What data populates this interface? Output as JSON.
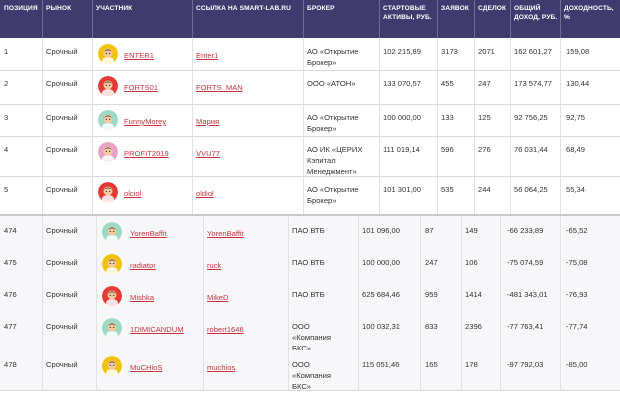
{
  "columns": [
    "ПОЗИЦИЯ",
    "РЫНОК",
    "УЧАСТНИК",
    "ССЫЛКА НА SMART-LAB.RU",
    "БРОКЕР",
    "СТАРТОВЫЕ АКТИВЫ, РУБ.",
    "ЗАЯВОК",
    "СДЕЛОК",
    "ОБЩИЙ ДОХОД, РУБ.",
    "ДОХОДНОСТЬ, %"
  ],
  "top_rows": [
    {
      "position": "1",
      "market": "Срочный",
      "participant": "ENTER1",
      "link": "Enter1",
      "broker": [
        "АО «Открытие",
        "Брокер»"
      ],
      "assets": "102 215,89",
      "orders": "3173",
      "deals": "2071",
      "income": "162 601,27",
      "yield": "159,08",
      "avatar_color": "#f2c200"
    },
    {
      "position": "2",
      "market": "Срочный",
      "participant": "FORTS01",
      "link": "FORTS_MAN",
      "broker": [
        "ООО «АТОН»"
      ],
      "assets": "133 070,57",
      "orders": "455",
      "deals": "247",
      "income": "173 574,77",
      "yield": "130,44",
      "avatar_color": "#e53935"
    },
    {
      "position": "3",
      "market": "Срочный",
      "participant": "FunnyMorey",
      "link": "Мария",
      "broker": [
        "АО «Открытие",
        "Брокер»"
      ],
      "assets": "100 000,00",
      "orders": "133",
      "deals": "125",
      "income": "92 756,25",
      "yield": "92,75",
      "avatar_color": "#9ad9c4"
    },
    {
      "position": "4",
      "market": "Срочный",
      "participant": "PROFIT2019",
      "link": "VVU77",
      "broker": [
        "АО ИК «ЦЕРИХ",
        "Кэпитал",
        "Менеджмент»"
      ],
      "assets": "111 019,14",
      "orders": "596",
      "deals": "276",
      "income": "76 031,44",
      "yield": "68,49",
      "avatar_color": "#e8a3c4"
    },
    {
      "position": "5",
      "market": "Срочный",
      "participant": "olciol",
      "link": "oldiol",
      "broker": [
        "АО «Открытие",
        "Брокер»"
      ],
      "assets": "101 301,00",
      "orders": "535",
      "deals": "244",
      "income": "56 064,25",
      "yield": "55,34",
      "avatar_color": "#e53935"
    }
  ],
  "bottom_rows": [
    {
      "position": "474",
      "market": "Срочный",
      "participant": "YorenBaffit",
      "link": "YorenBaffit",
      "broker": [
        "ПАО ВТБ"
      ],
      "assets": "101 096,00",
      "orders": "87",
      "deals": "149",
      "income": "-66 233,89",
      "yield": "-65,52",
      "avatar_color": "#9ad9c4"
    },
    {
      "position": "475",
      "market": "Срочный",
      "participant": "radiator",
      "link": "ruck",
      "broker": [
        "ПАО ВТБ"
      ],
      "assets": "100 000,00",
      "orders": "247",
      "deals": "106",
      "income": "-75 074,59",
      "yield": "-75,08",
      "avatar_color": "#f2c200"
    },
    {
      "position": "476",
      "market": "Срочный",
      "participant": "Mishka",
      "link": "MikeD",
      "broker": [
        "ПАО ВТБ"
      ],
      "assets": "625 684,46",
      "orders": "959",
      "deals": "1414",
      "income": "-481 343,01",
      "yield": "-76,93",
      "avatar_color": "#e53935"
    },
    {
      "position": "477",
      "market": "Срочный",
      "participant": "1DIMICANDUM",
      "link": "robert1646",
      "broker": [
        "ООО",
        "«Компания",
        "БКС»"
      ],
      "assets": "100 032,31",
      "orders": "833",
      "deals": "2396",
      "income": "-77 763,41",
      "yield": "-77,74",
      "avatar_color": "#9ad9c4"
    },
    {
      "position": "478",
      "market": "Срочный",
      "participant": "MuCHioS",
      "link": "muchios",
      "broker": [
        "ООО",
        "«Компания",
        "БКС»"
      ],
      "assets": "115 051,46",
      "orders": "165",
      "deals": "178",
      "income": "-97 792,03",
      "yield": "-85,00",
      "avatar_color": "#f2c200"
    }
  ]
}
